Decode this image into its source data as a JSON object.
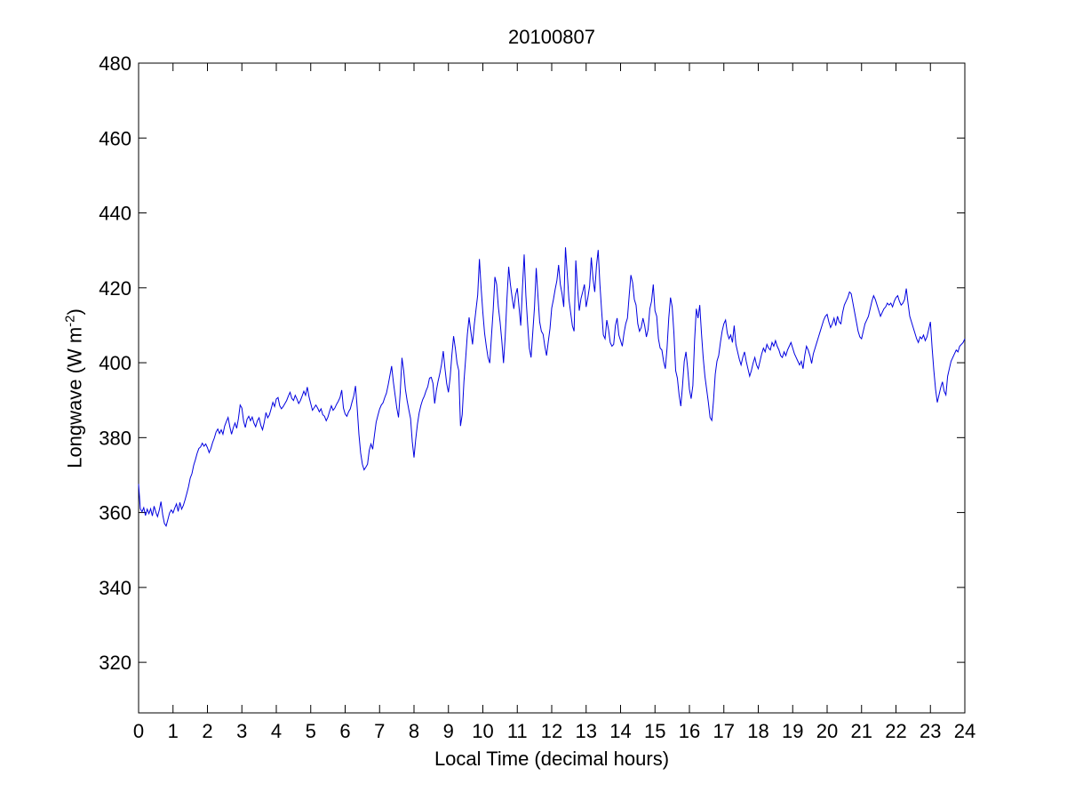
{
  "figure": {
    "title": "20100807",
    "xlabel": "Local Time (decimal hours)",
    "ylabel_prefix": "Longwave (W m",
    "ylabel_sup": "-2",
    "ylabel_suffix": ")"
  },
  "chart_data": {
    "type": "line",
    "title": "20100807",
    "xlabel": "Local Time (decimal hours)",
    "ylabel": "Longwave (W m^-2)",
    "xlim": [
      0,
      24
    ],
    "ylim": [
      306.5,
      480
    ],
    "xticks": [
      0,
      1,
      2,
      3,
      4,
      5,
      6,
      7,
      8,
      9,
      10,
      11,
      12,
      13,
      14,
      15,
      16,
      17,
      18,
      19,
      20,
      21,
      22,
      23,
      24
    ],
    "yticks": [
      320,
      340,
      360,
      380,
      400,
      420,
      440,
      460,
      480
    ],
    "grid": false,
    "legend": "none",
    "line_color": "#0000E0",
    "axis_color": "#000000",
    "background": "#ffffff",
    "series_name": "longwave",
    "x0": 0,
    "dx": 0.05,
    "y": [
      367.6,
      361.0,
      360.2,
      361.3,
      359.2,
      360.9,
      359.7,
      361.0,
      359.1,
      361.7,
      360.1,
      358.9,
      360.6,
      362.9,
      359.4,
      357.1,
      356.4,
      358.1,
      359.9,
      360.7,
      359.9,
      361.2,
      362.3,
      360.3,
      362.7,
      360.9,
      361.9,
      363.4,
      365.1,
      366.9,
      369.2,
      370.4,
      372.6,
      374.1,
      375.8,
      377.1,
      377.5,
      378.5,
      377.7,
      378.3,
      377.3,
      376.0,
      377.1,
      378.7,
      379.9,
      381.5,
      382.3,
      381.1,
      382.1,
      380.9,
      383.1,
      384.3,
      385.4,
      382.9,
      380.9,
      382.6,
      383.9,
      382.5,
      385.1,
      388.7,
      387.9,
      384.4,
      382.7,
      384.9,
      385.7,
      384.5,
      385.5,
      383.9,
      382.9,
      384.5,
      385.3,
      383.3,
      382.1,
      384.1,
      386.7,
      385.3,
      386.1,
      387.7,
      389.4,
      388.3,
      390.3,
      390.7,
      388.5,
      387.7,
      388.3,
      389.1,
      389.9,
      391.1,
      392.1,
      390.5,
      389.9,
      391.3,
      390.3,
      389.1,
      389.9,
      391.1,
      392.4,
      391.3,
      393.5,
      390.9,
      389.1,
      387.3,
      388.0,
      388.7,
      387.9,
      386.9,
      387.7,
      386.1,
      385.7,
      384.5,
      385.5,
      387.1,
      388.5,
      387.3,
      387.9,
      388.9,
      389.7,
      390.7,
      392.7,
      387.9,
      386.3,
      385.7,
      386.9,
      387.7,
      389.5,
      391.1,
      393.8,
      387.9,
      380.9,
      375.9,
      372.9,
      371.4,
      372.1,
      372.9,
      376.6,
      378.3,
      376.9,
      380.6,
      384.1,
      385.9,
      387.6,
      388.7,
      389.3,
      390.7,
      391.9,
      394.1,
      396.6,
      399.1,
      394.9,
      391.4,
      387.9,
      385.4,
      392.1,
      401.3,
      397.9,
      392.9,
      389.9,
      387.4,
      385.1,
      378.9,
      374.7,
      379.6,
      383.6,
      386.6,
      388.6,
      390.1,
      391.1,
      392.5,
      393.6,
      395.9,
      396.1,
      394.5,
      389.1,
      392.6,
      395.1,
      397.1,
      399.6,
      403.1,
      398.4,
      394.4,
      392.1,
      396.1,
      402.1,
      407.1,
      403.9,
      399.9,
      397.9,
      383.1,
      386.1,
      394.9,
      401.1,
      407.6,
      412.1,
      408.4,
      404.9,
      410.1,
      414.1,
      418.1,
      427.7,
      419.9,
      413.4,
      407.9,
      404.4,
      401.4,
      399.9,
      407.1,
      414.1,
      422.9,
      420.9,
      414.9,
      410.9,
      405.9,
      399.9,
      407.1,
      417.1,
      425.6,
      420.9,
      417.4,
      414.4,
      418.1,
      419.9,
      414.9,
      409.9,
      419.9,
      428.9,
      417.9,
      410.4,
      403.9,
      401.4,
      408.1,
      414.9,
      425.3,
      417.9,
      410.9,
      408.4,
      407.6,
      404.4,
      401.9,
      405.6,
      409.1,
      414.6,
      416.9,
      419.6,
      421.9,
      426.1,
      420.9,
      418.4,
      414.9,
      430.8,
      423.9,
      416.9,
      413.4,
      409.9,
      408.4,
      427.3,
      419.9,
      413.9,
      417.1,
      418.9,
      420.9,
      414.9,
      417.4,
      420.4,
      428.1,
      422.4,
      418.9,
      425.9,
      430.1,
      420.9,
      413.9,
      407.4,
      406.4,
      411.4,
      408.9,
      405.4,
      404.4,
      404.9,
      409.9,
      411.9,
      407.4,
      405.9,
      404.4,
      407.9,
      410.4,
      411.9,
      417.9,
      423.4,
      421.4,
      416.9,
      415.4,
      410.4,
      408.4,
      409.4,
      411.9,
      409.9,
      406.9,
      408.9,
      414.4,
      416.4,
      420.9,
      413.9,
      412.4,
      406.4,
      403.9,
      403.4,
      400.4,
      398.4,
      403.9,
      411.9,
      417.4,
      414.9,
      407.9,
      397.9,
      395.9,
      391.4,
      388.4,
      393.9,
      400.4,
      402.9,
      398.4,
      392.9,
      390.4,
      393.9,
      405.9,
      414.4,
      411.9,
      415.4,
      407.9,
      401.4,
      396.4,
      392.9,
      389.4,
      385.4,
      384.6,
      389.9,
      396.9,
      400.4,
      401.9,
      405.4,
      408.4,
      410.4,
      411.4,
      407.9,
      406.4,
      407.4,
      405.4,
      409.9,
      404.9,
      402.9,
      400.9,
      399.4,
      401.4,
      402.9,
      400.4,
      398.4,
      396.4,
      397.9,
      399.9,
      401.4,
      399.4,
      398.4,
      400.4,
      402.4,
      403.9,
      402.9,
      404.9,
      403.9,
      403.4,
      405.4,
      404.4,
      405.9,
      404.4,
      403.4,
      401.9,
      401.4,
      402.9,
      401.9,
      403.4,
      404.4,
      405.4,
      403.9,
      402.4,
      401.4,
      400.4,
      399.4,
      400.4,
      398.4,
      401.9,
      404.4,
      403.4,
      401.9,
      399.8,
      402.4,
      403.9,
      405.4,
      406.9,
      408.4,
      409.9,
      411.4,
      412.4,
      412.9,
      410.9,
      409.4,
      410.4,
      411.9,
      409.9,
      412.4,
      410.9,
      410.4,
      413.4,
      415.4,
      416.4,
      417.4,
      418.9,
      418.4,
      415.9,
      413.4,
      410.9,
      408.4,
      406.9,
      406.4,
      408.4,
      410.4,
      411.4,
      412.4,
      414.4,
      416.4,
      417.9,
      416.9,
      415.4,
      413.9,
      412.4,
      413.4,
      414.4,
      414.9,
      415.9,
      415.4,
      415.9,
      414.9,
      416.4,
      417.4,
      417.9,
      416.4,
      415.4,
      415.9,
      416.9,
      419.8,
      415.9,
      412.4,
      410.9,
      409.4,
      407.9,
      406.4,
      405.4,
      406.9,
      406.4,
      407.4,
      405.9,
      406.9,
      408.9,
      410.9,
      403.9,
      397.9,
      392.9,
      389.4,
      391.4,
      393.4,
      394.9,
      392.4,
      391.4,
      396.4,
      398.4,
      400.4,
      401.4,
      402.4,
      403.4,
      402.9,
      404.4,
      404.9,
      405.4,
      406.4
    ]
  }
}
